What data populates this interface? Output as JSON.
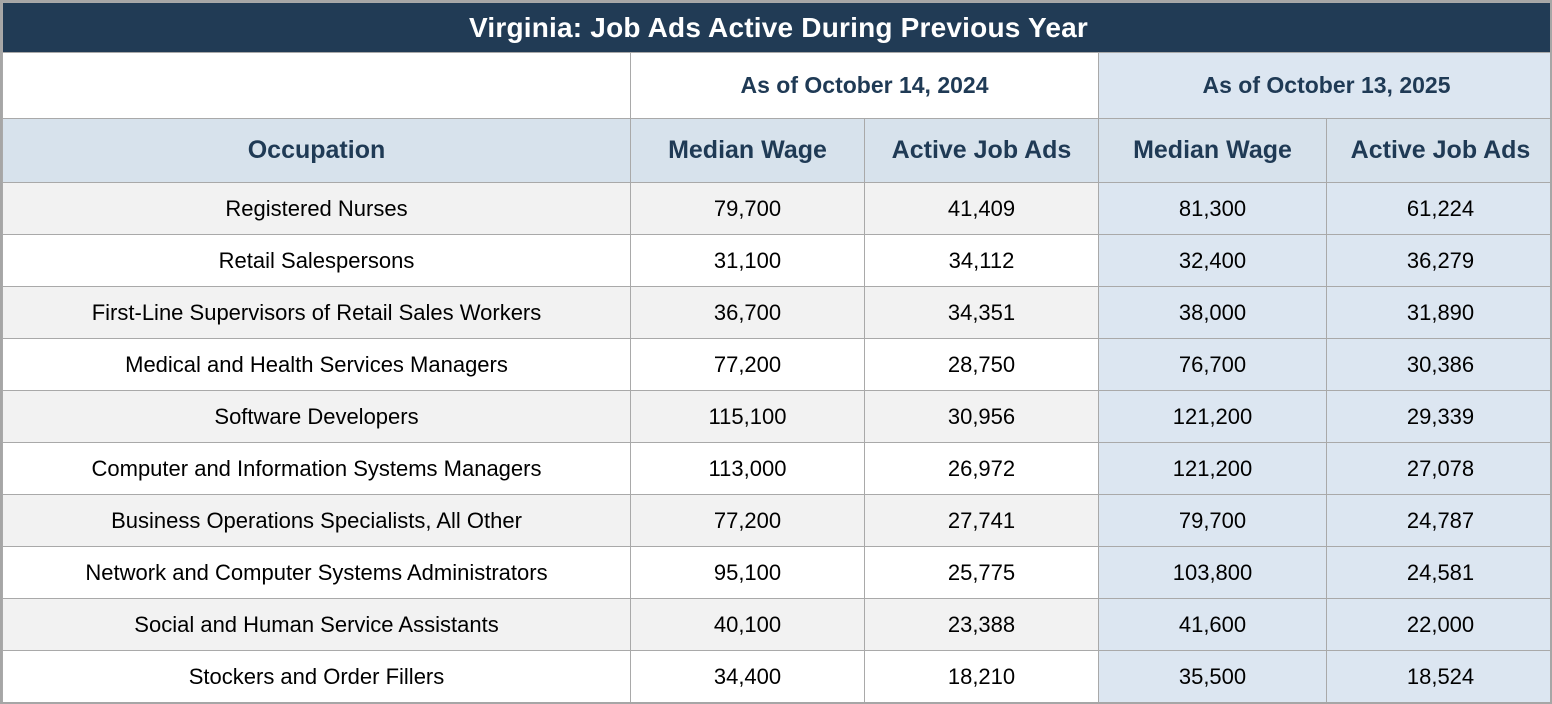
{
  "colors": {
    "title_bar_bg": "#213b55",
    "title_text": "#ffffff",
    "header_bg": "#d7e2ec",
    "header_text": "#1f3a55",
    "col_2025_bg": "#dce6f1",
    "row_shaded_bg": "#f2f2f2",
    "row_plain_bg": "#ffffff",
    "grid_border": "#a9a9a9"
  },
  "chart_data": {
    "type": "table",
    "title": "Virginia: Job Ads Active During Previous Year",
    "column_groups": [
      "As of October 14, 2024",
      "As of October 13, 2025"
    ],
    "columns": [
      "Occupation",
      "Median Wage",
      "Active Job Ads",
      "Median Wage",
      "Active Job Ads"
    ],
    "rows": [
      [
        "Registered Nurses",
        "79,700",
        "41,409",
        "81,300",
        "61,224"
      ],
      [
        "Retail Salespersons",
        "31,100",
        "34,112",
        "32,400",
        "36,279"
      ],
      [
        "First-Line Supervisors of Retail Sales Workers",
        "36,700",
        "34,351",
        "38,000",
        "31,890"
      ],
      [
        "Medical and Health Services Managers",
        "77,200",
        "28,750",
        "76,700",
        "30,386"
      ],
      [
        "Software Developers",
        "115,100",
        "30,956",
        "121,200",
        "29,339"
      ],
      [
        "Computer and Information Systems Managers",
        "113,000",
        "26,972",
        "121,200",
        "27,078"
      ],
      [
        "Business Operations Specialists, All Other",
        "77,200",
        "27,741",
        "79,700",
        "24,787"
      ],
      [
        "Network and Computer Systems Administrators",
        "95,100",
        "25,775",
        "103,800",
        "24,581"
      ],
      [
        "Social and Human Service Assistants",
        "40,100",
        "23,388",
        "41,600",
        "22,000"
      ],
      [
        "Stockers and Order Fillers",
        "34,400",
        "18,210",
        "35,500",
        "18,524"
      ]
    ]
  }
}
